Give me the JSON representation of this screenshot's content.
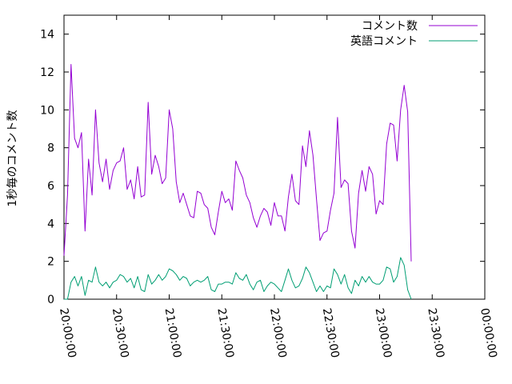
{
  "chart_data": {
    "type": "line",
    "title": "",
    "xlabel": "",
    "ylabel": "1秒毎のコメント数",
    "x_ticks": [
      "20:00:00",
      "20:30:00",
      "21:00:00",
      "21:30:00",
      "22:00:00",
      "22:30:00",
      "23:00:00",
      "23:30:00",
      "00:00:00"
    ],
    "y_ticks": [
      0,
      2,
      4,
      6,
      8,
      10,
      12,
      14
    ],
    "ylim": [
      0,
      15
    ],
    "xlim_minutes": [
      0,
      240
    ],
    "sample_interval_minutes": 2,
    "grid": false,
    "legend_position": "top-right",
    "series": [
      {
        "name": "コメント数",
        "color": "#9400d3",
        "values": [
          2.3,
          5.5,
          12.4,
          8.5,
          8.0,
          8.8,
          3.6,
          7.4,
          5.5,
          10.0,
          7.2,
          6.2,
          7.4,
          5.8,
          6.8,
          7.2,
          7.3,
          8.0,
          5.8,
          6.3,
          5.3,
          7.0,
          5.4,
          5.5,
          10.4,
          6.6,
          7.6,
          7.0,
          6.1,
          6.4,
          10.0,
          9.0,
          6.2,
          5.1,
          5.6,
          5.0,
          4.4,
          4.3,
          5.7,
          5.6,
          5.0,
          4.8,
          3.8,
          3.4,
          4.6,
          5.7,
          5.1,
          5.3,
          4.7,
          7.3,
          6.8,
          6.4,
          5.5,
          5.1,
          4.3,
          3.8,
          4.4,
          4.8,
          4.6,
          3.9,
          5.1,
          4.4,
          4.4,
          3.6,
          5.4,
          6.6,
          5.2,
          5.0,
          8.1,
          7.0,
          8.9,
          7.6,
          5.3,
          3.1,
          3.5,
          3.6,
          4.7,
          5.6,
          9.6,
          5.9,
          6.3,
          6.1,
          3.6,
          2.7,
          5.6,
          6.8,
          5.7,
          7.0,
          6.6,
          4.5,
          5.2,
          5.0,
          8.2,
          9.3,
          9.2,
          7.3,
          10.0,
          11.3,
          9.9,
          2.0
        ]
      },
      {
        "name": "英語コメント",
        "color": "#009e73",
        "values": [
          0.0,
          0.0,
          0.9,
          1.2,
          0.7,
          1.2,
          0.2,
          1.0,
          0.9,
          1.7,
          0.9,
          0.7,
          0.9,
          0.6,
          0.9,
          1.0,
          1.3,
          1.2,
          0.9,
          1.1,
          0.6,
          1.2,
          0.5,
          0.4,
          1.3,
          0.8,
          1.0,
          1.3,
          1.0,
          1.2,
          1.6,
          1.5,
          1.3,
          1.0,
          1.2,
          1.1,
          0.7,
          0.9,
          1.0,
          0.9,
          1.0,
          1.2,
          0.5,
          0.4,
          0.8,
          0.8,
          0.9,
          0.9,
          0.8,
          1.4,
          1.1,
          1.0,
          1.3,
          0.8,
          0.5,
          0.9,
          1.0,
          0.4,
          0.7,
          0.9,
          0.8,
          0.6,
          0.4,
          1.0,
          1.6,
          1.0,
          0.6,
          0.7,
          1.1,
          1.7,
          1.4,
          0.9,
          0.4,
          0.7,
          0.4,
          0.7,
          0.6,
          1.6,
          1.3,
          0.8,
          1.3,
          0.6,
          0.3,
          1.0,
          0.7,
          1.2,
          0.9,
          1.2,
          0.9,
          0.8,
          0.8,
          1.0,
          1.7,
          1.6,
          0.9,
          1.2,
          2.2,
          1.8,
          0.5,
          0.0
        ]
      }
    ]
  }
}
